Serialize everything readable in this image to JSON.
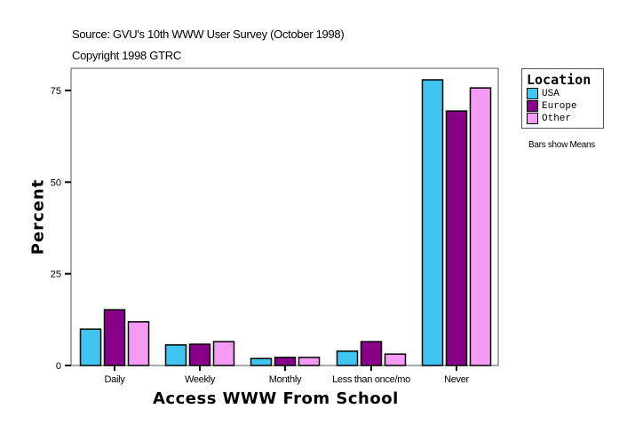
{
  "header": {
    "source": "Source: GVU's 10th WWW User Survey (October 1998)",
    "copyright": "Copyright 1998 GTRC"
  },
  "legend": {
    "title": "Location",
    "items": [
      {
        "label": "USA",
        "color": "#40C4F0"
      },
      {
        "label": "Europe",
        "color": "#880088"
      },
      {
        "label": "Other",
        "color": "#F49CF4"
      }
    ]
  },
  "note": "Bars show Means",
  "chart_data": {
    "type": "bar",
    "title": "",
    "xlabel": "Access WWW From School",
    "ylabel": "Percent",
    "categories": [
      "Daily",
      "Weekly",
      "Monthly",
      "Less than once/mo",
      "Never"
    ],
    "series": [
      {
        "name": "USA",
        "color": "#40C4F0",
        "values": [
          9.9,
          5.6,
          1.9,
          3.9,
          77.9
        ]
      },
      {
        "name": "Europe",
        "color": "#880088",
        "values": [
          15.2,
          5.8,
          2.2,
          6.5,
          69.4
        ]
      },
      {
        "name": "Other",
        "color": "#F49CF4",
        "values": [
          11.9,
          6.5,
          2.2,
          3.1,
          75.7
        ]
      }
    ],
    "yticks": [
      0,
      25,
      50,
      75
    ],
    "ylim": [
      0,
      81
    ],
    "grid": false,
    "legend_position": "right"
  }
}
